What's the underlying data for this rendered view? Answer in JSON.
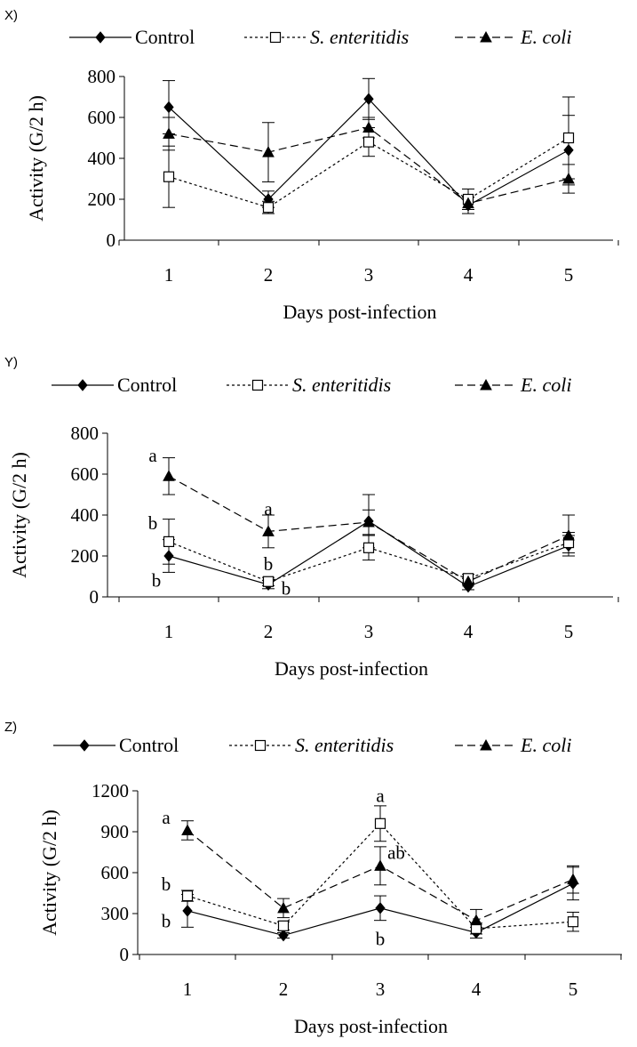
{
  "figure": {
    "colors": {
      "ink": "#000000",
      "background": "#ffffff"
    }
  },
  "series_styles": [
    {
      "name": "Control",
      "italic": false,
      "marker": "diamond",
      "marker_fill": "#000000",
      "dash": ""
    },
    {
      "name": "S. enteritidis",
      "italic": true,
      "marker": "square",
      "marker_fill": "#ffffff",
      "dash": "3,3"
    },
    {
      "name": "E. coli",
      "italic": true,
      "marker": "triangle",
      "marker_fill": "#000000",
      "dash": "9,5"
    }
  ],
  "chart_data": [
    {
      "panel_label": "X)",
      "type": "line",
      "xlabel": "Days post-infection",
      "ylabel": "Activity  (G/2 h)",
      "categories": [
        "1",
        "2",
        "3",
        "4",
        "5"
      ],
      "ylim": [
        0,
        800
      ],
      "yticks": [
        "0",
        "200",
        "400",
        "600",
        "800"
      ],
      "series": [
        {
          "name": "Control",
          "values": [
            650,
            200,
            690,
            170,
            440
          ],
          "errors": [
            130,
            40,
            100,
            40,
            170
          ]
        },
        {
          "name": "S. enteritidis",
          "values": [
            310,
            160,
            480,
            200,
            500
          ],
          "errors": [
            150,
            30,
            70,
            50,
            200
          ]
        },
        {
          "name": "E. coli",
          "values": [
            520,
            430,
            550,
            180,
            300
          ],
          "errors": [
            80,
            145,
            50,
            30,
            70
          ]
        }
      ],
      "annotations": []
    },
    {
      "panel_label": "Y)",
      "type": "line",
      "xlabel": "Days post-infection",
      "ylabel": "Activity  (G/2 h)",
      "categories": [
        "1",
        "2",
        "3",
        "4",
        "5"
      ],
      "ylim": [
        0,
        800
      ],
      "yticks": [
        "0",
        "200",
        "400",
        "600",
        "800"
      ],
      "series": [
        {
          "name": "Control",
          "values": [
            200,
            60,
            370,
            50,
            250
          ],
          "errors": [
            80,
            20,
            130,
            15,
            50
          ]
        },
        {
          "name": "S. enteritidis",
          "values": [
            270,
            75,
            240,
            90,
            265
          ],
          "errors": [
            110,
            20,
            60,
            20,
            50
          ]
        },
        {
          "name": "E. coli",
          "values": [
            590,
            320,
            365,
            75,
            300
          ],
          "errors": [
            90,
            80,
            60,
            15,
            100
          ]
        }
      ],
      "annotations": [
        {
          "text": "a",
          "x": 1,
          "y": 660,
          "dx": -18
        },
        {
          "text": "b",
          "x": 1,
          "y": 330,
          "dx": -18
        },
        {
          "text": "b",
          "x": 1,
          "y": 50,
          "dx": -14
        },
        {
          "text": "a",
          "x": 2,
          "y": 400,
          "dx": 0
        },
        {
          "text": "b",
          "x": 2,
          "y": 130,
          "dx": 0
        },
        {
          "text": "b",
          "x": 2,
          "y": 10,
          "dx": 20
        }
      ]
    },
    {
      "panel_label": "Z)",
      "type": "line",
      "xlabel": "Days post-infection",
      "ylabel": "Activity  (G/2 h)",
      "categories": [
        "1",
        "2",
        "3",
        "4",
        "5"
      ],
      "ylim": [
        0,
        1200
      ],
      "yticks": [
        "0",
        "300",
        "600",
        "900",
        "1200"
      ],
      "series": [
        {
          "name": "Control",
          "values": [
            320,
            140,
            340,
            160,
            520
          ],
          "errors": [
            120,
            20,
            90,
            40,
            120
          ]
        },
        {
          "name": "S. enteritidis",
          "values": [
            430,
            210,
            960,
            190,
            240
          ],
          "errors": [
            40,
            30,
            130,
            40,
            70
          ]
        },
        {
          "name": "E. coli",
          "values": [
            910,
            340,
            650,
            250,
            550
          ],
          "errors": [
            70,
            70,
            140,
            80,
            100
          ]
        }
      ],
      "annotations": [
        {
          "text": "a",
          "x": 1,
          "y": 960,
          "dx": -24
        },
        {
          "text": "b",
          "x": 1,
          "y": 470,
          "dx": -24
        },
        {
          "text": "b",
          "x": 1,
          "y": 200,
          "dx": -24
        },
        {
          "text": "a",
          "x": 3,
          "y": 1120,
          "dx": 0
        },
        {
          "text": "ab",
          "x": 3,
          "y": 700,
          "dx": 18
        },
        {
          "text": "b",
          "x": 3,
          "y": 70,
          "dx": 0
        }
      ]
    }
  ]
}
